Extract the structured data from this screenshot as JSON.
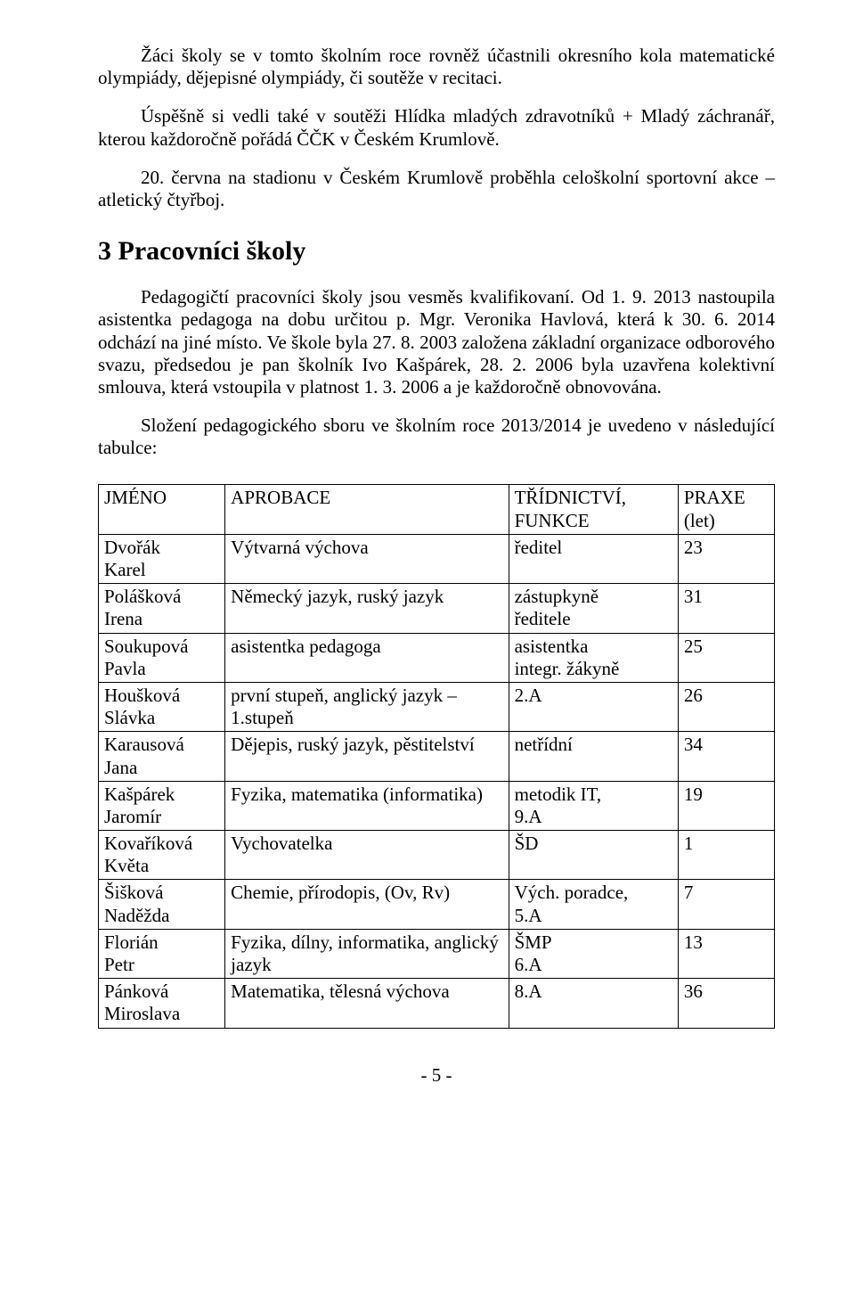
{
  "para1": "Žáci školy se v tomto školním roce rovněž účastnili  okresního kola matematické olympiády, dějepisné olympiády, či soutěže v recitaci.",
  "para2": "Úspěšně si vedli také v soutěži Hlídka mladých zdravotníků + Mladý záchranář, kterou každoročně pořádá ČČK v Českém Krumlově.",
  "para3": "20. června na stadionu v Českém Krumlově proběhla celoškolní sportovní akce – atletický čtyřboj.",
  "section_title": "3 Pracovníci školy",
  "para4": "Pedagogičtí pracovníci školy jsou vesměs kvalifikovaní. Od 1. 9. 2013 nastoupila asistentka pedagoga na dobu určitou p. Mgr. Veronika Havlová, která k 30. 6. 2014 odchází na jiné místo. Ve škole byla 27. 8. 2003 založena základní organizace odborového svazu, předsedou je pan školník Ivo Kašpárek, 28. 2. 2006 byla uzavřena kolektivní smlouva, která vstoupila v platnost 1. 3. 2006 a je každoročně obnovována.",
  "table_intro": "Složení pedagogického sboru ve školním roce 2013/2014 je uvedeno v následující tabulce:",
  "header": {
    "c1": "JMÉNO",
    "c2": "APROBACE",
    "c3": "TŘÍDNICTVÍ,\nFUNKCE",
    "c4": "PRAXE\n(let)"
  },
  "rows": [
    {
      "name": "Dvořák\nKarel",
      "aprob": "Výtvarná výchova",
      "func": "ředitel",
      "praxe": "23"
    },
    {
      "name": "Polášková\nIrena",
      "aprob": "Německý jazyk, ruský jazyk",
      "func": "zástupkyně\nředitele",
      "praxe": "31"
    },
    {
      "name": "Soukupová\nPavla",
      "aprob": "asistentka pedagoga",
      "func": "asistentka\nintegr. žákyně",
      "praxe": "25"
    },
    {
      "name": "Houšková\nSlávka",
      "aprob": "první stupeň, anglický jazyk – 1.stupeň",
      "func": "2.A",
      "praxe": "26"
    },
    {
      "name": "Karausová\nJana",
      "aprob": "Dějepis, ruský jazyk, pěstitelství",
      "func": "netřídní",
      "praxe": "34"
    },
    {
      "name": "Kašpárek\nJaromír",
      "aprob": "Fyzika, matematika (informatika)",
      "func": "metodik IT,\n9.A",
      "praxe": "19"
    },
    {
      "name": "Kovaříková\nKvěta",
      "aprob": "Vychovatelka",
      "func": "ŠD",
      "praxe": "1"
    },
    {
      "name": "Šišková\nNaděžda",
      "aprob": "Chemie, přírodopis, (Ov, Rv)",
      "func": "Vých. poradce,\n5.A",
      "praxe": "7"
    },
    {
      "name": "Florián\nPetr",
      "aprob": "Fyzika, dílny, informatika, anglický jazyk",
      "func": "ŠMP\n6.A",
      "praxe": "13"
    },
    {
      "name": "Pánková\nMiroslava",
      "aprob": "Matematika, tělesná výchova",
      "func": "8.A",
      "praxe": "36"
    }
  ],
  "footer": "- 5 -"
}
